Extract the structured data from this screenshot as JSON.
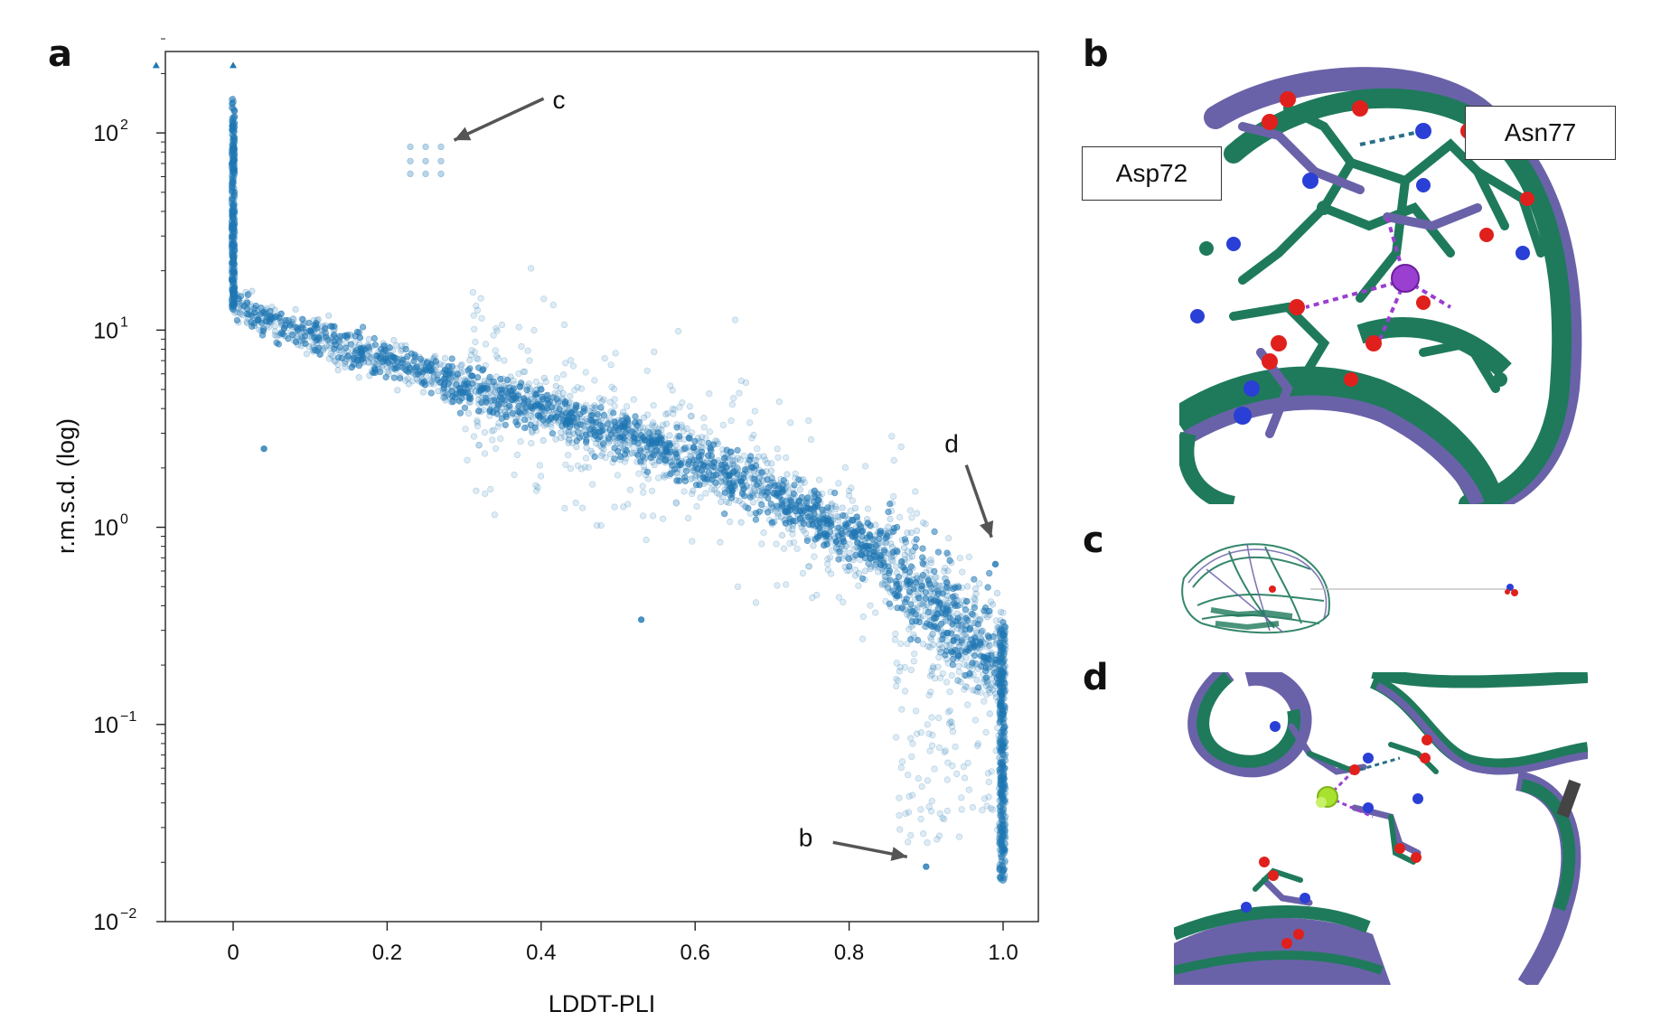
{
  "panels": {
    "a": "a",
    "b": "b",
    "c": "c",
    "d": "d"
  },
  "labels": {
    "asp": "Asp72",
    "asn": "Asn77"
  },
  "colors": {
    "points": "#1f77b4",
    "green_ribbon": "#1f7a5c",
    "purple_ribbon": "#6a62a8",
    "oxygen": "#e0201c",
    "nitrogen": "#2a3fd6",
    "ion_purple": "#9a3fd0",
    "ion_green": "#a6e22e",
    "arrow": "#555555"
  },
  "chart_data": {
    "type": "scatter",
    "title": "",
    "xlabel": "LDDT-PLI",
    "ylabel": "r.m.s.d. (log)",
    "yscale": "log",
    "xlim": [
      -0.17,
      1.05
    ],
    "ylim": [
      0.01,
      300
    ],
    "xticks": [
      "0",
      "0.2",
      "0.4",
      "0.6",
      "0.8",
      "1.0"
    ],
    "xtick_values": [
      0,
      0.2,
      0.4,
      0.6,
      0.8,
      1.0
    ],
    "yticks": [
      {
        "base": "10",
        "exp": "2",
        "value": 100
      },
      {
        "base": "10",
        "exp": "1",
        "value": 10
      },
      {
        "base": "10",
        "exp": "0",
        "value": 1
      },
      {
        "base": "10",
        "exp": "−1",
        "value": 0.1
      },
      {
        "base": "10",
        "exp": "−2",
        "value": 0.01
      }
    ],
    "grid": false,
    "trend": {
      "x": [
        0.0,
        0.05,
        0.1,
        0.2,
        0.3,
        0.4,
        0.5,
        0.6,
        0.7,
        0.8,
        0.85,
        0.9,
        0.95,
        1.0
      ],
      "y": [
        14,
        11,
        9.5,
        7,
        5.2,
        4.0,
        3.0,
        2.2,
        1.5,
        0.9,
        0.7,
        0.45,
        0.3,
        0.2
      ]
    },
    "outliers_triangles": [
      {
        "x": -0.1,
        "y": 220
      },
      {
        "x": 0.0,
        "y": 220
      }
    ],
    "cluster_c": [
      {
        "x": 0.23,
        "y": 85
      },
      {
        "x": 0.25,
        "y": 85
      },
      {
        "x": 0.27,
        "y": 85
      },
      {
        "x": 0.23,
        "y": 72
      },
      {
        "x": 0.25,
        "y": 72
      },
      {
        "x": 0.27,
        "y": 72
      },
      {
        "x": 0.23,
        "y": 62
      },
      {
        "x": 0.25,
        "y": 62
      },
      {
        "x": 0.27,
        "y": 62
      }
    ],
    "notable_points": [
      {
        "x": 0.04,
        "y": 2.5
      },
      {
        "x": 0.53,
        "y": 0.34
      },
      {
        "x": 0.9,
        "y": 0.019
      },
      {
        "x": 0.99,
        "y": 0.65
      }
    ],
    "annotations": [
      {
        "label": "c",
        "x": 0.28,
        "y": 90
      },
      {
        "label": "d",
        "x": 0.985,
        "y": 0.8
      },
      {
        "label": "b",
        "x": 0.88,
        "y": 0.02
      }
    ]
  }
}
